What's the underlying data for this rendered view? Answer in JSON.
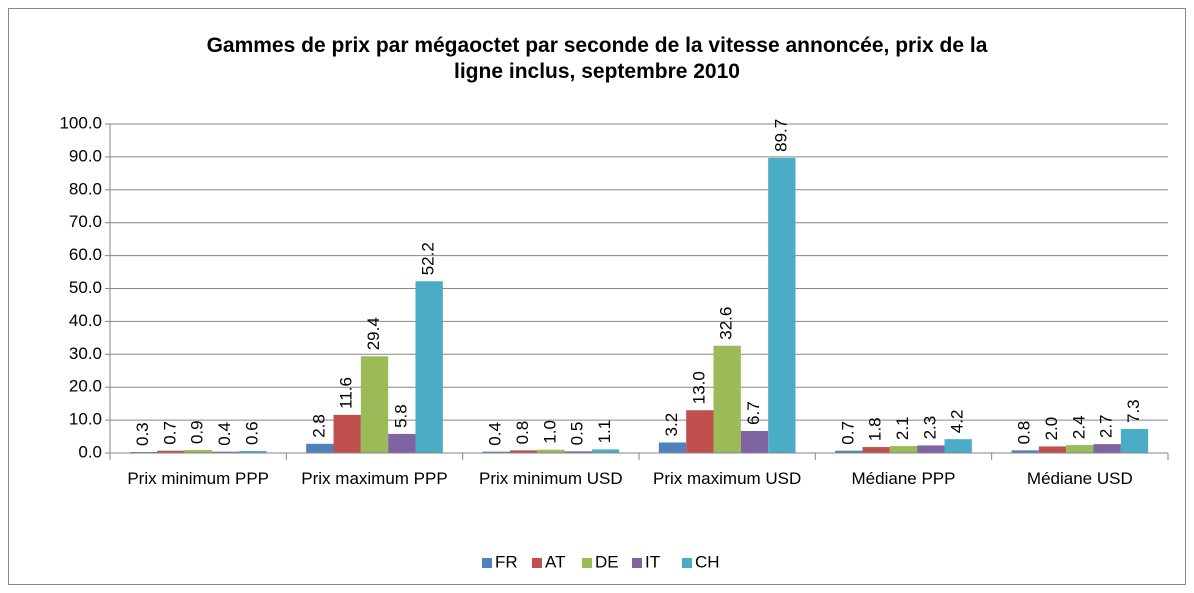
{
  "chart_data": {
    "type": "bar",
    "title": "Gammes de prix par mégaoctet par seconde de la vitesse annoncée, prix de la ligne inclus, septembre 2010",
    "categories": [
      "Prix minimum PPP",
      "Prix maximum PPP",
      "Prix minimum USD",
      "Prix maximum USD",
      "Médiane PPP",
      "Médiane USD"
    ],
    "series": [
      {
        "name": "FR",
        "color": "#4f81bd",
        "values": [
          0.3,
          2.8,
          0.4,
          3.2,
          0.7,
          0.8
        ],
        "value_labels": [
          "0.3",
          "2.8",
          "0.4",
          "3.2",
          "0.7",
          "0.8"
        ]
      },
      {
        "name": "AT",
        "color": "#c0504d",
        "values": [
          0.7,
          11.6,
          0.8,
          13.0,
          1.8,
          2.0
        ],
        "value_labels": [
          "0.7",
          "11.6",
          "0.8",
          "13.0",
          "1.8",
          "2.0"
        ]
      },
      {
        "name": "DE",
        "color": "#9bbb59",
        "values": [
          0.9,
          29.4,
          1.0,
          32.6,
          2.1,
          2.4
        ],
        "value_labels": [
          "0.9",
          "29.4",
          "1.0",
          "32.6",
          "2.1",
          "2.4"
        ]
      },
      {
        "name": "IT",
        "color": "#8064a2",
        "values": [
          0.4,
          5.8,
          0.5,
          6.7,
          2.3,
          2.7
        ],
        "value_labels": [
          "0.4",
          "5.8",
          "0.5",
          "6.7",
          "2.3",
          "2.7"
        ]
      },
      {
        "name": "CH",
        "color": "#4bacc6",
        "values": [
          0.6,
          52.2,
          1.1,
          89.7,
          4.2,
          7.3
        ],
        "value_labels": [
          "0.6",
          "52.2",
          "1.1",
          "89.7",
          "4.2",
          "7.3"
        ]
      }
    ],
    "ylim": [
      0,
      100
    ],
    "yticks": [
      {
        "value": 0,
        "label": "0.0"
      },
      {
        "value": 10,
        "label": "10.0"
      },
      {
        "value": 20,
        "label": "20.0"
      },
      {
        "value": 30,
        "label": "30.0"
      },
      {
        "value": 40,
        "label": "40.0"
      },
      {
        "value": 50,
        "label": "50.0"
      },
      {
        "value": 60,
        "label": "60.0"
      },
      {
        "value": 70,
        "label": "70.0"
      },
      {
        "value": 80,
        "label": "80.0"
      },
      {
        "value": 90,
        "label": "90.0"
      },
      {
        "value": 100,
        "label": "100.0"
      }
    ],
    "grid": true,
    "legend": "bottom"
  }
}
